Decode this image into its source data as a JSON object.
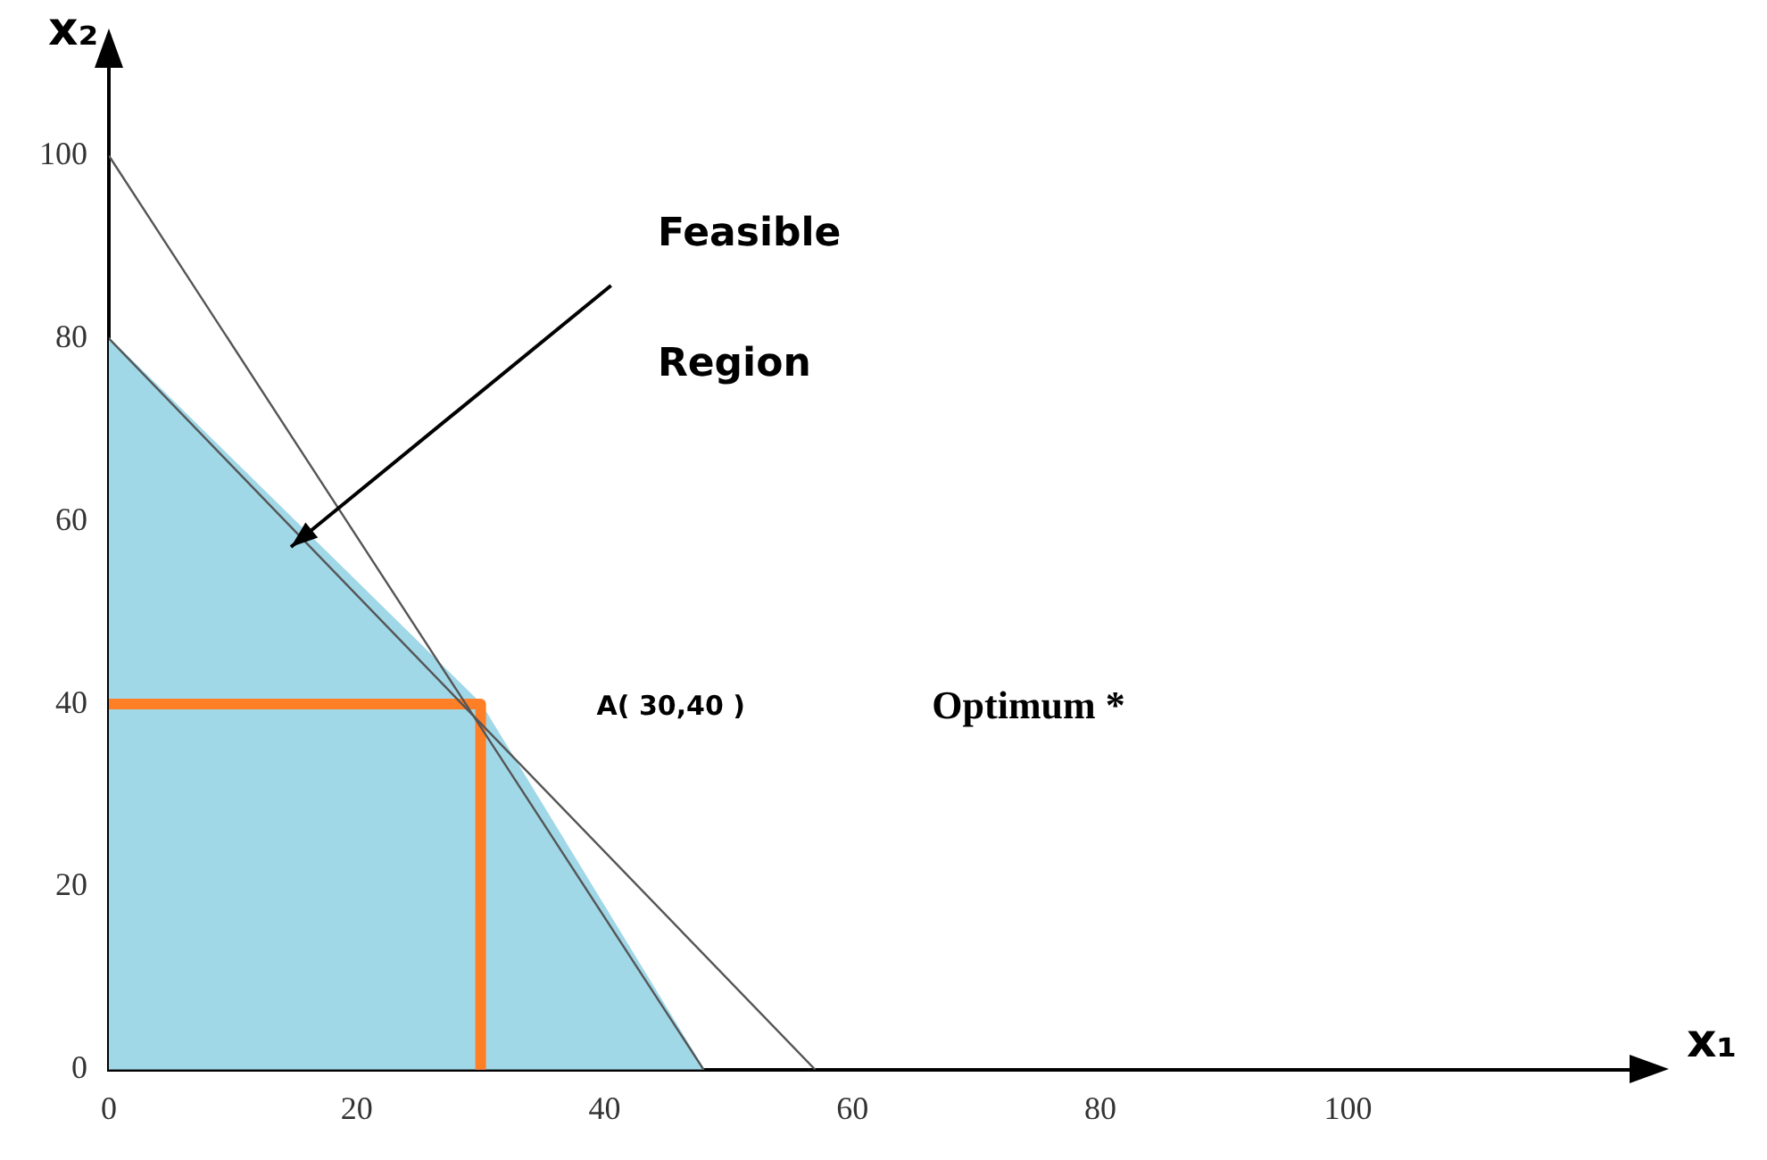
{
  "chart_data": {
    "type": "line",
    "xlabel": "x₁",
    "ylabel": "x₂",
    "xlim": [
      0,
      123
    ],
    "ylim": [
      0,
      110
    ],
    "xticks": [
      0,
      20,
      40,
      60,
      80,
      100
    ],
    "yticks": [
      0,
      20,
      40,
      60,
      80,
      100
    ],
    "grid": false,
    "legend": false,
    "marker": "none",
    "line_style": "solid",
    "series": [
      {
        "type": "area",
        "color": "#a0d8e8",
        "x": [
          0,
          0,
          30,
          48
        ],
        "values": [
          0,
          80,
          40,
          0
        ]
      },
      {
        "color": "#555555",
        "x": [
          0,
          48
        ],
        "values": [
          100,
          0
        ]
      },
      {
        "color": "#555555",
        "x": [
          0,
          57
        ],
        "values": [
          80,
          0
        ]
      },
      {
        "color": "#ff7f27",
        "x": [
          0,
          30,
          30
        ],
        "values": [
          40,
          40,
          0
        ]
      }
    ],
    "annotations": [
      "Feasible",
      "Region",
      "A( 30,40 )",
      "Optimum *"
    ]
  }
}
